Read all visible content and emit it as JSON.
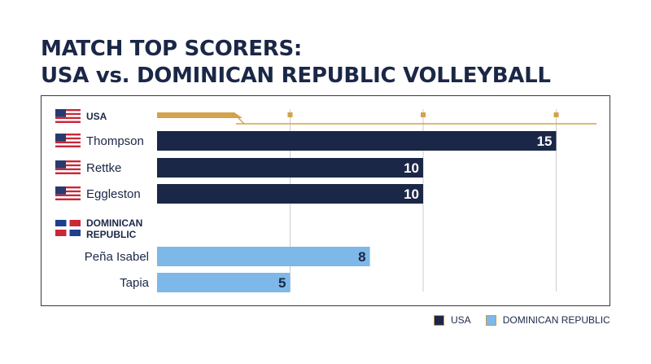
{
  "title_line1": "MATCH TOP SCORERS:",
  "title_line2": "USA vs. DOMINICAN REPUBLIC VOLLEYBALL",
  "chart_data": {
    "type": "bar",
    "orientation": "horizontal",
    "xlim": [
      0,
      18
    ],
    "grid": true,
    "groups": [
      {
        "name": "USA",
        "flag": "usa-flag-icon",
        "players": [
          {
            "name": "Thompson",
            "value": 15
          },
          {
            "name": "Rettke",
            "value": 10
          },
          {
            "name": "Eggleston",
            "value": 10
          }
        ]
      },
      {
        "name": "DOMINICAN REPUBLIC",
        "name_lines": [
          "DOMINICAN",
          "REPUBLIC"
        ],
        "flag": "dominican-republic-flag-icon",
        "players": [
          {
            "name": "Peña Isabel",
            "value": 8
          },
          {
            "name": "Tapia",
            "value": 5
          }
        ]
      }
    ],
    "series": [
      {
        "name": "USA",
        "color": "#1b2747"
      },
      {
        "name": "DOMINICAN REPUBLIC",
        "color": "#7db8e8"
      }
    ],
    "legend_position": "bottom-right"
  },
  "legend": {
    "usa_label": "USA",
    "dr_label": "DOMINICAN REPUBLIC"
  },
  "colors": {
    "usa": "#1b2747",
    "dr": "#7db8e8",
    "accent": "#d4a24c",
    "grid": "#cccccc"
  }
}
